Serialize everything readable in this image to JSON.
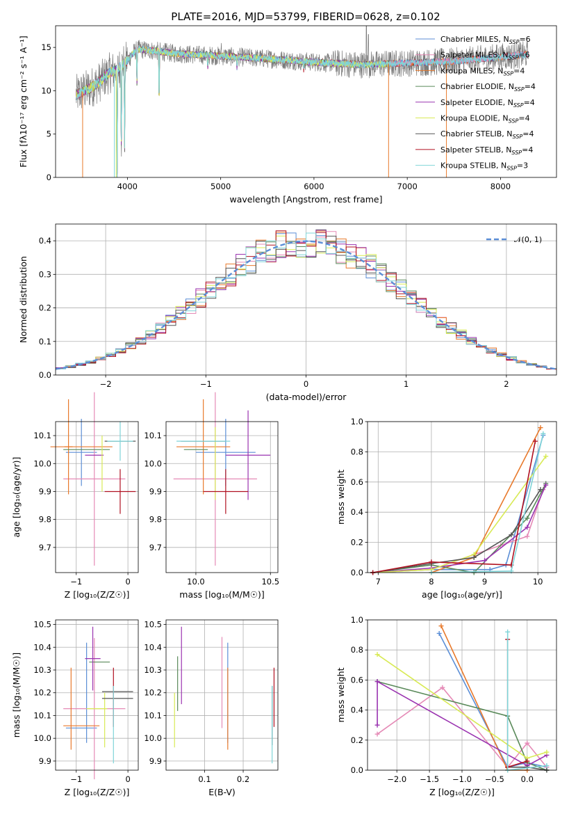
{
  "figure_title": "PLATE=2016, MJD=53799, FIBERID=0628, z=0.102",
  "colors": {
    "Chabrier MILES": "#5b8ed6",
    "Salpeter MILES": "#e58ab6",
    "Kroupa MILES": "#e8792b",
    "Chabrier ELODIE": "#5a8a5a",
    "Salpeter ELODIE": "#9a33b0",
    "Kroupa ELODIE": "#d8ea55",
    "Chabrier STELIB": "#555555",
    "Salpeter STELIB": "#b01020",
    "Kroupa STELIB": "#7fd4d8",
    "gauss": "#5b8ed6"
  },
  "chart_data": [
    {
      "id": "spectrum",
      "type": "line",
      "title": "PLATE=2016, MJD=53799, FIBERID=0628, z=0.102",
      "xlabel": "wavelength [Angstrom, rest frame]",
      "ylabel": "Flux [fλ10⁻¹⁷ erg cm⁻² s⁻¹ A⁻¹]",
      "xlim": [
        3230,
        8600
      ],
      "ylim": [
        0,
        17.5
      ],
      "xticks": [
        4000,
        5000,
        6000,
        7000,
        8000
      ],
      "yticks": [
        0,
        5,
        10,
        15
      ],
      "grid": false,
      "legend_position": "top-right",
      "legend": [
        {
          "key": "Chabrier MILES",
          "base": "Chabrier MILES, N",
          "sub": "SSP",
          "tail": "=6"
        },
        {
          "key": "Salpeter MILES",
          "base": "Salpeter MILES, N",
          "sub": "SSP",
          "tail": "=6"
        },
        {
          "key": "Kroupa MILES",
          "base": "Kroupa MILES, N",
          "sub": "SSP",
          "tail": "=4"
        },
        {
          "key": "Chabrier ELODIE",
          "base": "Chabrier ELODIE, N",
          "sub": "SSP",
          "tail": "=4"
        },
        {
          "key": "Salpeter ELODIE",
          "base": "Salpeter ELODIE, N",
          "sub": "SSP",
          "tail": "=4"
        },
        {
          "key": "Kroupa ELODIE",
          "base": "Kroupa ELODIE, N",
          "sub": "SSP",
          "tail": "=4"
        },
        {
          "key": "Chabrier STELIB",
          "base": "Chabrier STELIB, N",
          "sub": "SSP",
          "tail": "=4"
        },
        {
          "key": "Salpeter STELIB",
          "base": "Salpeter STELIB, N",
          "sub": "SSP",
          "tail": "=4"
        },
        {
          "key": "Kroupa STELIB",
          "base": "Kroupa STELIB, N",
          "sub": "SSP",
          "tail": "=3"
        }
      ],
      "data_profile": {
        "note_x": [
          3450,
          3500,
          3600,
          3700,
          3800,
          3900,
          4000,
          4100,
          4300,
          4500,
          5000,
          5500,
          6000,
          6500,
          7000,
          7500,
          8000,
          8300
        ],
        "flux_y": [
          9.5,
          9.8,
          10.3,
          11.0,
          12.0,
          12.5,
          13.5,
          14.8,
          14.6,
          14.3,
          14.0,
          13.7,
          13.3,
          13.0,
          13.2,
          13.4,
          13.9,
          14.2
        ]
      }
    },
    {
      "id": "residuals",
      "type": "histogram",
      "xlabel": "(data-model)/error",
      "ylabel": "Normed distribution",
      "xlim": [
        -2.5,
        2.5
      ],
      "ylim": [
        0,
        0.45
      ],
      "xticks": [
        -2,
        -1,
        0,
        1,
        2
      ],
      "yticks": [
        0.0,
        0.1,
        0.2,
        0.3,
        0.4
      ],
      "grid": true,
      "legend_position": "top-right",
      "gauss_label": "𝒩(0, 1)",
      "bin_width": 0.1
    },
    {
      "id": "age_vs_Z",
      "type": "errorbar",
      "xlabel": "Z [log₁₀(Z/Z☉)]",
      "ylabel": "age  [log₁₀(age/yr)]",
      "xlim": [
        -1.4,
        0.2
      ],
      "ylim": [
        9.61,
        10.15
      ],
      "xticks": [
        -1,
        0
      ],
      "yticks": [
        9.7,
        9.8,
        9.9,
        10.0,
        10.1
      ],
      "grid": true,
      "points": [
        {
          "key": "Chabrier MILES",
          "x": -0.9,
          "xerr": 0.3,
          "y": 10.04,
          "yerr": 0.12
        },
        {
          "key": "Salpeter MILES",
          "x": -0.65,
          "xerr": 0.6,
          "y": 9.945,
          "yerr": 0.31
        },
        {
          "key": "Kroupa MILES",
          "x": -1.15,
          "xerr": 0.08,
          "y": 10.06,
          "yerr": 0.17
        },
        {
          "key": "Kroupa MILES",
          "x": -0.9,
          "xerr": 0.6,
          "y": 10.06,
          "yerr": 0.0
        },
        {
          "key": "Chabrier ELODIE",
          "x": -0.8,
          "xerr": 0.45,
          "y": 10.05,
          "yerr": 0.0
        },
        {
          "key": "Salpeter ELODIE",
          "x": -0.65,
          "xerr": 0.18,
          "y": 10.03,
          "yerr": 0.0
        },
        {
          "key": "Kroupa ELODIE",
          "x": -0.5,
          "xerr": 0.0,
          "y": 10.0,
          "yerr": 0.1
        },
        {
          "key": "Chabrier STELIB",
          "x": -0.15,
          "xerr": 0.3,
          "y": 10.08,
          "yerr": 0.0
        },
        {
          "key": "Salpeter STELIB",
          "x": -0.15,
          "xerr": 0.3,
          "y": 9.9,
          "yerr": 0.08
        },
        {
          "key": "Kroupa STELIB",
          "x": -0.15,
          "xerr": 0.25,
          "y": 10.08,
          "yerr": 0.07
        }
      ]
    },
    {
      "id": "age_vs_mass",
      "type": "errorbar",
      "xlabel": "mass [log₁₀(M/M☉)]",
      "ylabel": "",
      "xlim": [
        9.8,
        10.55
      ],
      "ylim": [
        9.61,
        10.15
      ],
      "xticks": [
        10.0,
        10.5
      ],
      "yticks": [
        9.7,
        9.8,
        9.9,
        10.0,
        10.1
      ],
      "grid": true,
      "points": [
        {
          "key": "Chabrier MILES",
          "x": 10.2,
          "xerr": 0.2,
          "y": 10.04,
          "yerr": 0.12
        },
        {
          "key": "Salpeter MILES",
          "x": 10.13,
          "xerr": 0.28,
          "y": 9.945,
          "yerr": 0.31
        },
        {
          "key": "Kroupa MILES",
          "x": 10.05,
          "xerr": 0.18,
          "y": 10.06,
          "yerr": 0.17
        },
        {
          "key": "Chabrier ELODIE",
          "x": 10.0,
          "xerr": 0.08,
          "y": 10.05,
          "yerr": 0.0
        },
        {
          "key": "Salpeter ELODIE",
          "x": 10.35,
          "xerr": 0.15,
          "y": 10.03,
          "yerr": 0.16
        },
        {
          "key": "Kroupa ELODIE",
          "x": 10.13,
          "xerr": 0.0,
          "y": 10.0,
          "yerr": 0.13
        },
        {
          "key": "Chabrier STELIB",
          "x": 10.05,
          "xerr": 0.15,
          "y": 10.08,
          "yerr": 0.0
        },
        {
          "key": "Salpeter STELIB",
          "x": 10.2,
          "xerr": 0.15,
          "y": 9.9,
          "yerr": 0.08
        },
        {
          "key": "Kroupa STELIB",
          "x": 10.05,
          "xerr": 0.18,
          "y": 10.08,
          "yerr": 0.0
        }
      ]
    },
    {
      "id": "weight_vs_age",
      "type": "line",
      "xlabel": "age  [log₁₀(age/yr)]",
      "ylabel": "mass weight",
      "xlim": [
        6.8,
        10.35
      ],
      "ylim": [
        0,
        1.0
      ],
      "xticks": [
        7,
        8,
        9,
        10
      ],
      "yticks": [
        0.0,
        0.2,
        0.4,
        0.6,
        0.8,
        1.0
      ],
      "grid": true,
      "series": [
        {
          "key": "Chabrier MILES",
          "x": [
            6.9,
            8.0,
            9.1,
            9.4,
            10.1
          ],
          "y": [
            0.0,
            0.02,
            0.02,
            0.05,
            0.91
          ]
        },
        {
          "key": "Salpeter MILES",
          "x": [
            6.9,
            8.0,
            9.3,
            9.8,
            10.1
          ],
          "y": [
            0.0,
            0.02,
            0.18,
            0.24,
            0.55
          ]
        },
        {
          "key": "Kroupa MILES",
          "x": [
            8.0,
            8.8,
            10.05
          ],
          "y": [
            0.0,
            0.1,
            0.96
          ]
        },
        {
          "key": "Chabrier ELODIE",
          "x": [
            6.9,
            8.0,
            8.8,
            9.8,
            10.15
          ],
          "y": [
            0.0,
            0.05,
            0.0,
            0.36,
            0.59
          ]
        },
        {
          "key": "Salpeter ELODIE",
          "x": [
            6.9,
            8.0,
            9.0,
            9.8,
            10.15
          ],
          "y": [
            0.0,
            0.03,
            0.08,
            0.3,
            0.58
          ]
        },
        {
          "key": "Kroupa ELODIE",
          "x": [
            6.9,
            8.0,
            8.8,
            10.15
          ],
          "y": [
            0.0,
            0.02,
            0.12,
            0.77
          ]
        },
        {
          "key": "Chabrier STELIB",
          "x": [
            6.9,
            8.0,
            8.8,
            9.5,
            10.05
          ],
          "y": [
            0.0,
            0.06,
            0.1,
            0.25,
            0.55
          ]
        },
        {
          "key": "Salpeter STELIB",
          "x": [
            6.9,
            8.0,
            9.5,
            9.95
          ],
          "y": [
            0.0,
            0.07,
            0.05,
            0.87
          ]
        },
        {
          "key": "Kroupa STELIB",
          "x": [
            8.0,
            9.5,
            10.1
          ],
          "y": [
            0.0,
            0.01,
            0.92
          ]
        }
      ]
    },
    {
      "id": "mass_vs_Z",
      "type": "errorbar",
      "xlabel": "Z [log₁₀(Z/Z☉)]",
      "ylabel": "mass [log₁₀(M/M☉)]",
      "xlim": [
        -1.4,
        0.2
      ],
      "ylim": [
        9.86,
        10.52
      ],
      "xticks": [
        -1,
        0
      ],
      "yticks": [
        9.9,
        10.0,
        10.1,
        10.2,
        10.3,
        10.4,
        10.5
      ],
      "grid": true,
      "points": [
        {
          "key": "Chabrier MILES",
          "x": -0.9,
          "xerr": 0.3,
          "y": 10.045,
          "yerr": 0.0
        },
        {
          "key": "Chabrier MILES",
          "x": -0.8,
          "xerr": 0.0,
          "y": 10.2,
          "yerr": 0.22
        },
        {
          "key": "Salpeter MILES",
          "x": -0.65,
          "xerr": 0.6,
          "y": 10.13,
          "yerr": 0.31
        },
        {
          "key": "Kroupa MILES",
          "x": -0.9,
          "xerr": 0.35,
          "y": 10.055,
          "yerr": 0.0
        },
        {
          "key": "Kroupa MILES",
          "x": -1.1,
          "xerr": 0.0,
          "y": 10.13,
          "yerr": 0.18
        },
        {
          "key": "Chabrier ELODIE",
          "x": -0.55,
          "xerr": 0.2,
          "y": 10.335,
          "yerr": 0.0
        },
        {
          "key": "Salpeter ELODIE",
          "x": -0.68,
          "xerr": 0.15,
          "y": 10.35,
          "yerr": 0.14
        },
        {
          "key": "Kroupa ELODIE",
          "x": -0.6,
          "xerr": 0.2,
          "y": 10.13,
          "yerr": 0.0
        },
        {
          "key": "Kroupa ELODIE",
          "x": -0.45,
          "xerr": 0.0,
          "y": 10.08,
          "yerr": 0.12
        },
        {
          "key": "Chabrier STELIB",
          "x": -0.2,
          "xerr": 0.3,
          "y": 10.175,
          "yerr": 0.0
        },
        {
          "key": "Chabrier STELIB",
          "x": -0.2,
          "xerr": 0.3,
          "y": 10.205,
          "yerr": 0.0
        },
        {
          "key": "Salpeter STELIB",
          "x": -0.28,
          "xerr": 0.0,
          "y": 10.18,
          "yerr": 0.13
        },
        {
          "key": "Kroupa STELIB",
          "x": -0.28,
          "xerr": 0.0,
          "y": 10.06,
          "yerr": 0.17
        }
      ]
    },
    {
      "id": "mass_vs_EBV",
      "type": "errorbar",
      "xlabel": "E(B-V)",
      "ylabel": "",
      "xlim": [
        0.0,
        0.29
      ],
      "ylim": [
        9.86,
        10.52
      ],
      "xticks": [
        0.1,
        0.2
      ],
      "yticks": [
        9.9,
        10.0,
        10.1,
        10.2,
        10.3,
        10.4,
        10.5
      ],
      "grid": true,
      "points": [
        {
          "key": "Chabrier MILES",
          "x": 0.16,
          "xerr": 0.0,
          "y": 10.2,
          "yerr": 0.22
        },
        {
          "key": "Salpeter MILES",
          "x": 0.145,
          "xerr": 0.0,
          "y": 10.245,
          "yerr": 0.2
        },
        {
          "key": "Kroupa MILES",
          "x": 0.16,
          "xerr": 0.0,
          "y": 10.13,
          "yerr": 0.18
        },
        {
          "key": "Chabrier ELODIE",
          "x": 0.03,
          "xerr": 0.0,
          "y": 10.24,
          "yerr": 0.12
        },
        {
          "key": "Salpeter ELODIE",
          "x": 0.04,
          "xerr": 0.0,
          "y": 10.32,
          "yerr": 0.17
        },
        {
          "key": "Kroupa ELODIE",
          "x": 0.022,
          "xerr": 0.0,
          "y": 10.08,
          "yerr": 0.12
        },
        {
          "key": "Chabrier STELIB",
          "x": 0.275,
          "xerr": 0.0,
          "y": 10.1,
          "yerr": 0.13
        },
        {
          "key": "Salpeter STELIB",
          "x": 0.28,
          "xerr": 0.0,
          "y": 10.18,
          "yerr": 0.13
        },
        {
          "key": "Kroupa STELIB",
          "x": 0.275,
          "xerr": 0.0,
          "y": 10.06,
          "yerr": 0.17
        }
      ]
    },
    {
      "id": "weight_vs_Z",
      "type": "line",
      "xlabel": "Z [log₁₀(Z/Z☉)]",
      "ylabel": "mass weight",
      "xlim": [
        -2.45,
        0.45
      ],
      "ylim": [
        0,
        1.0
      ],
      "xticks": [
        -2.0,
        -1.5,
        -1.0,
        -0.5,
        0.0
      ],
      "yticks": [
        0.0,
        0.2,
        0.4,
        0.6,
        0.8,
        1.0
      ],
      "grid": true,
      "series": [
        {
          "key": "Chabrier MILES",
          "x": [
            -1.35,
            -0.3,
            0.0,
            0.3
          ],
          "y": [
            0.91,
            0.02,
            0.05,
            0.02
          ]
        },
        {
          "key": "Salpeter MILES",
          "x": [
            -2.3,
            -1.3,
            -0.3,
            0.0,
            0.3
          ],
          "y": [
            0.24,
            0.55,
            0.02,
            0.18,
            0.02
          ]
        },
        {
          "key": "Kroupa MILES",
          "x": [
            -1.32,
            -0.3,
            0.0
          ],
          "y": [
            0.96,
            0.0,
            0.0
          ]
        },
        {
          "key": "Chabrier ELODIE",
          "x": [
            -2.3,
            -0.3,
            0.0,
            0.3
          ],
          "y": [
            0.59,
            0.36,
            0.05,
            0.0
          ]
        },
        {
          "key": "Salpeter ELODIE",
          "x": [
            -2.3,
            -2.3,
            0.0,
            0.3
          ],
          "y": [
            0.3,
            0.59,
            0.03,
            0.1
          ]
        },
        {
          "key": "Kroupa ELODIE",
          "x": [
            -2.3,
            0.0,
            0.3
          ],
          "y": [
            0.77,
            0.08,
            0.12
          ]
        },
        {
          "key": "Chabrier STELIB",
          "x": [
            -0.3,
            0.0,
            0.3
          ],
          "y": [
            0.02,
            0.02,
            0.0
          ]
        },
        {
          "key": "Salpeter STELIB",
          "x": [
            -0.3,
            -0.3,
            0.0
          ],
          "y": [
            0.87,
            0.02,
            0.06
          ]
        },
        {
          "key": "Kroupa STELIB",
          "x": [
            -0.3,
            -0.3,
            0.3
          ],
          "y": [
            0.92,
            0.0,
            0.03
          ]
        }
      ]
    }
  ]
}
